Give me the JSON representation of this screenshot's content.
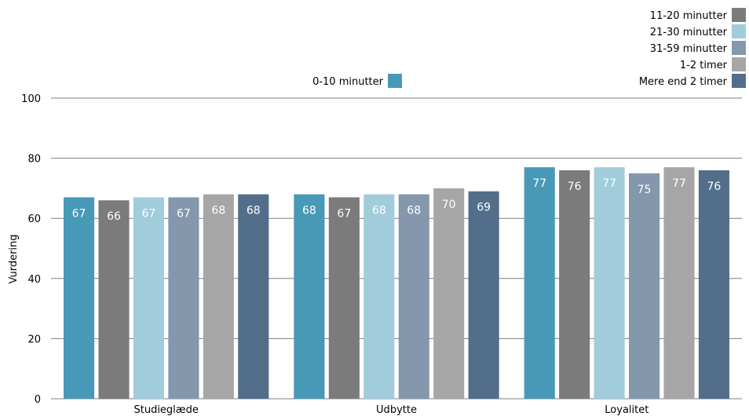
{
  "chart_data": {
    "type": "bar",
    "ylabel": "Vurdering",
    "ylim": [
      0,
      100
    ],
    "yticks": [
      0,
      20,
      40,
      60,
      80,
      100
    ],
    "grid": true,
    "legend_position": "top",
    "categories": [
      "Studieglæde",
      "Udbytte",
      "Loyalitet"
    ],
    "series": [
      {
        "name": "0-10 minutter",
        "color": "#4799b7",
        "values": [
          67,
          68,
          77
        ],
        "labels": [
          "67",
          "68",
          "77"
        ]
      },
      {
        "name": "11-20 minutter",
        "color": "#7b7b7b",
        "values": [
          66,
          67,
          76
        ],
        "labels": [
          "66",
          "67",
          "76"
        ]
      },
      {
        "name": "21-30 minutter",
        "color": "#a1ccdb",
        "values": [
          67,
          68,
          77
        ],
        "labels": [
          "67",
          "68",
          "77"
        ]
      },
      {
        "name": "31-59 minutter",
        "color": "#8497ad",
        "values": [
          67,
          68,
          75
        ],
        "labels": [
          "67",
          "68",
          "75"
        ]
      },
      {
        "name": "1-2 timer",
        "color": "#a6a6a6",
        "values": [
          68,
          70,
          77
        ],
        "labels": [
          "68",
          "70",
          "77"
        ]
      },
      {
        "name": "Mere end 2 timer",
        "color": "#526e8b",
        "values": [
          68,
          69,
          76
        ],
        "labels": [
          "68",
          "69",
          "76"
        ]
      }
    ]
  }
}
